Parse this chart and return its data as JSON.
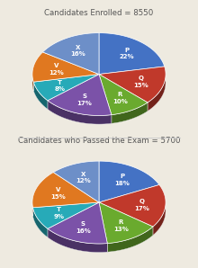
{
  "chart1": {
    "title": "Candidates Enrolled = 8550",
    "labels": [
      "P",
      "Q",
      "R",
      "S",
      "T",
      "V",
      "X"
    ],
    "values": [
      22,
      15,
      10,
      17,
      8,
      12,
      16
    ],
    "colors": [
      "#4472c4",
      "#c0392b",
      "#6aaa2e",
      "#7b52a8",
      "#27aab8",
      "#e07820",
      "#6d8fc8"
    ]
  },
  "chart2": {
    "title": "Candidates who Passed the Exam = 5700",
    "labels": [
      "P",
      "Q",
      "R",
      "S",
      "T",
      "V",
      "X"
    ],
    "values": [
      18,
      17,
      13,
      16,
      9,
      15,
      12
    ],
    "colors": [
      "#4472c4",
      "#c0392b",
      "#6aaa2e",
      "#7b52a8",
      "#27aab8",
      "#e07820",
      "#6d8fc8"
    ]
  },
  "background_color": "#eeeae0",
  "label_fontsize": 5.0,
  "title_fontsize": 6.2,
  "title_color": "#555555"
}
